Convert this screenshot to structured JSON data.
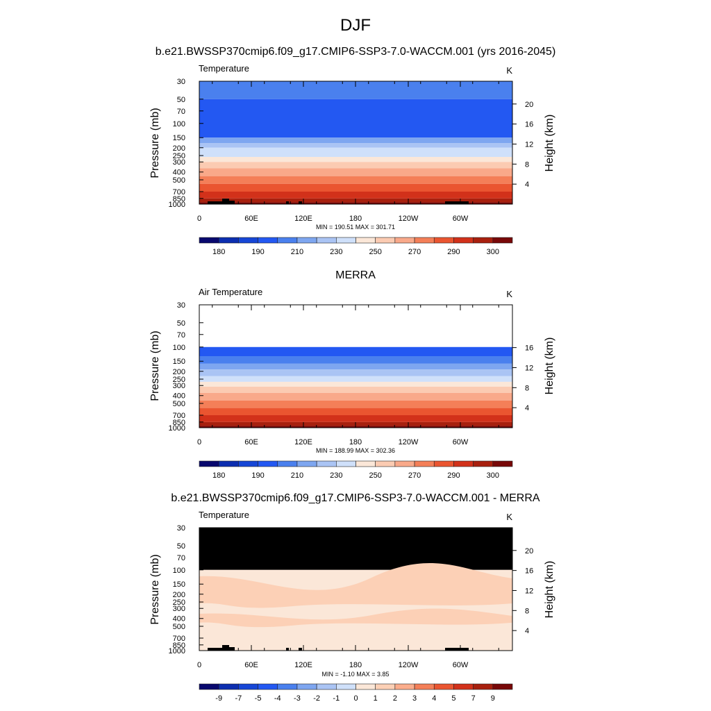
{
  "page": {
    "season": "DJF",
    "units_label": "K",
    "y_left_label": "Pressure (mb)",
    "y_right_label": "Height (km)"
  },
  "chart_data": [
    {
      "type": "heatmap",
      "title": "b.e21.BWSSP370cmip6.f09_g17.CMIP6-SSP3-7.0-WACCM.001 (yrs 2016-2045)",
      "variable": "Temperature",
      "units": "K",
      "x_ticks": [
        "0",
        "60E",
        "120E",
        "180",
        "120W",
        "60W"
      ],
      "y_left_ticks": [
        "30",
        "50",
        "70",
        "100",
        "150",
        "200",
        "250",
        "300",
        "400",
        "500",
        "700",
        "850",
        "1000"
      ],
      "y_right_ticks": [
        "4",
        "8",
        "12",
        "16",
        "20"
      ],
      "stats": "MIN = 190.51  MAX = 301.71",
      "colorbar_labels": [
        "180",
        "190",
        "210",
        "230",
        "250",
        "270",
        "290",
        "300"
      ],
      "bands_top_to_bottom": [
        {
          "pressure": [
            30,
            50
          ],
          "level": 4
        },
        {
          "pressure": [
            50,
            150
          ],
          "level": 3
        },
        {
          "pressure": [
            150,
            175
          ],
          "level": 5
        },
        {
          "pressure": [
            175,
            200
          ],
          "level": 6
        },
        {
          "pressure": [
            200,
            260
          ],
          "level": 7
        },
        {
          "pressure": [
            260,
            300
          ],
          "level": 8
        },
        {
          "pressure": [
            300,
            360
          ],
          "level": 9
        },
        {
          "pressure": [
            360,
            450
          ],
          "level": 10
        },
        {
          "pressure": [
            450,
            560
          ],
          "level": 11
        },
        {
          "pressure": [
            560,
            700
          ],
          "level": 12
        },
        {
          "pressure": [
            700,
            850
          ],
          "level": 13
        },
        {
          "pressure": [
            850,
            950
          ],
          "level": 14
        },
        {
          "pressure": [
            950,
            1000
          ],
          "level": 15
        }
      ]
    },
    {
      "type": "heatmap",
      "title": "MERRA",
      "variable": "Air Temperature",
      "units": "K",
      "x_ticks": [
        "0",
        "60E",
        "120E",
        "180",
        "120W",
        "60W"
      ],
      "y_left_ticks": [
        "30",
        "50",
        "70",
        "100",
        "150",
        "200",
        "250",
        "300",
        "400",
        "500",
        "700",
        "850",
        "1000"
      ],
      "y_right_ticks": [
        "4",
        "8",
        "12",
        "16"
      ],
      "stats": "MIN = 188.99  MAX = 302.36",
      "colorbar_labels": [
        "180",
        "190",
        "210",
        "230",
        "250",
        "270",
        "290",
        "300"
      ],
      "bands_top_to_bottom": [
        {
          "pressure": [
            100,
            130
          ],
          "level": 3
        },
        {
          "pressure": [
            130,
            160
          ],
          "level": 4
        },
        {
          "pressure": [
            160,
            190
          ],
          "level": 5
        },
        {
          "pressure": [
            190,
            230
          ],
          "level": 6
        },
        {
          "pressure": [
            230,
            270
          ],
          "level": 7
        },
        {
          "pressure": [
            270,
            310
          ],
          "level": 8
        },
        {
          "pressure": [
            310,
            370
          ],
          "level": 9
        },
        {
          "pressure": [
            370,
            460
          ],
          "level": 10
        },
        {
          "pressure": [
            460,
            570
          ],
          "level": 11
        },
        {
          "pressure": [
            570,
            700
          ],
          "level": 12
        },
        {
          "pressure": [
            700,
            850
          ],
          "level": 13
        },
        {
          "pressure": [
            850,
            950
          ],
          "level": 14
        },
        {
          "pressure": [
            950,
            1000
          ],
          "level": 15
        }
      ]
    },
    {
      "type": "heatmap",
      "title": "b.e21.BWSSP370cmip6.f09_g17.CMIP6-SSP3-7.0-WACCM.001 - MERRA",
      "variable": "Temperature",
      "units": "K",
      "x_ticks": [
        "0",
        "60E",
        "120E",
        "180",
        "120W",
        "60W"
      ],
      "y_left_ticks": [
        "30",
        "50",
        "70",
        "100",
        "150",
        "200",
        "250",
        "300",
        "400",
        "500",
        "700",
        "850",
        "1000"
      ],
      "y_right_ticks": [
        "4",
        "8",
        "12",
        "16",
        "20"
      ],
      "stats": "MIN =  -1.10  MAX =   3.85",
      "colorbar_labels": [
        "-9",
        "-7",
        "-5",
        "-4",
        "-3",
        "-2",
        "-1",
        "0",
        "1",
        "2",
        "3",
        "4",
        "5",
        "7",
        "9"
      ],
      "missing_above_pressure": 100,
      "bands_top_to_bottom": [
        {
          "pressure": [
            100,
            1000
          ],
          "level": 8
        },
        {
          "pressure": [
            120,
            260
          ],
          "level": 9
        },
        {
          "pressure": [
            350,
            450
          ],
          "level": 9
        }
      ]
    }
  ],
  "colors": {
    "temp_palette": [
      "#08086e",
      "#0c2eb0",
      "#1646d6",
      "#2358f2",
      "#4a80ee",
      "#7ea6f0",
      "#aac4f4",
      "#cfe0fa",
      "#fbe7d8",
      "#fbcbb2",
      "#f9a98a",
      "#f47f58",
      "#ea5530",
      "#d2311a",
      "#a8200e",
      "#780808"
    ],
    "diff_palette": [
      "#08086e",
      "#0c2eb0",
      "#1646d6",
      "#2358f2",
      "#4a80ee",
      "#7ea6f0",
      "#aac4f4",
      "#cfe0fa",
      "#fbe7d8",
      "#fcd0b6",
      "#fbad8c",
      "#f47f58",
      "#ea5530",
      "#d2311a",
      "#a8200e",
      "#780808"
    ],
    "missing": "#000000"
  }
}
